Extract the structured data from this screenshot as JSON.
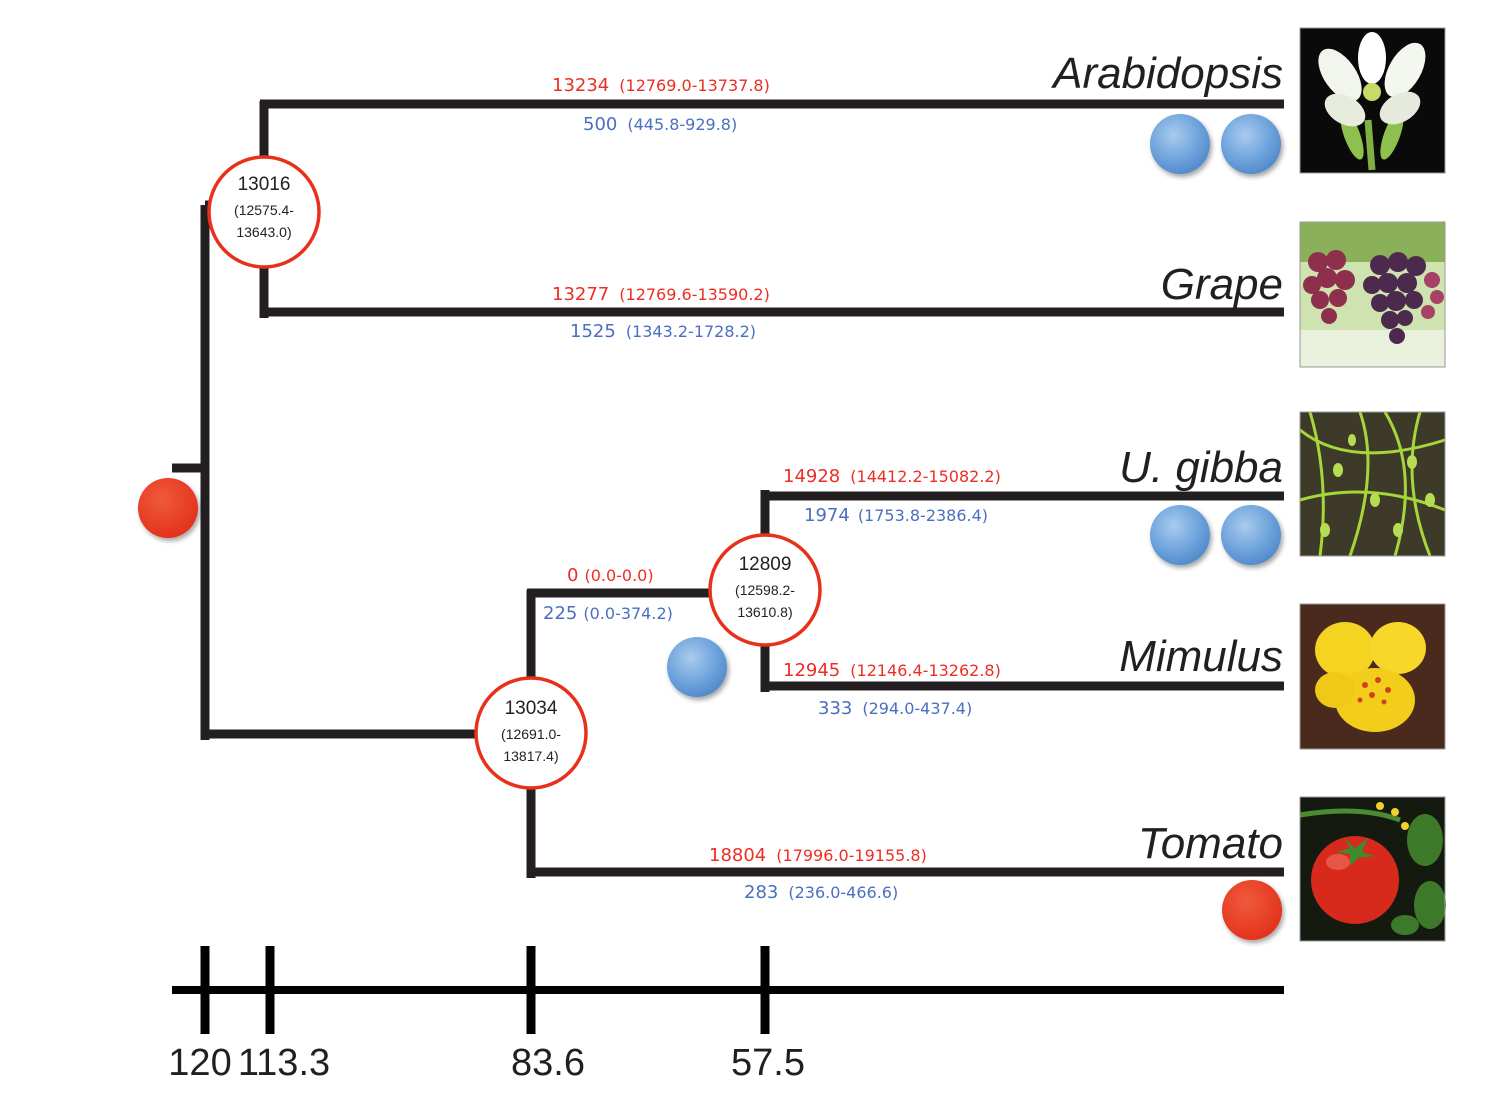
{
  "colors": {
    "gain": "#ee2d24",
    "loss": "#4a6fc0",
    "node_outline": "#e8311c",
    "branch": "#231f20",
    "wgd_event_blue": "#5d9ad6",
    "wgd_event_red": "#e93a22"
  },
  "root_node": {
    "event_marker": "red-circle"
  },
  "nodes": {
    "arabidopsis_grape": {
      "value": "13016",
      "range_line1": "(12575.4-",
      "range_line2": "13643.0)"
    },
    "lamiales_tomato": {
      "value": "13034",
      "range_line1": "(12691.0-",
      "range_line2": "13817.4)"
    },
    "ugibba_mimulus": {
      "value": "12809",
      "range_line1": "(12598.2-",
      "range_line2": "13610.8)"
    }
  },
  "branches": {
    "arabidopsis": {
      "gain": "13234",
      "gain_ci": "(12769.0-13737.8)",
      "loss": "500",
      "loss_ci": "(445.8-929.8)"
    },
    "grape": {
      "gain": "13277",
      "gain_ci": "(12769.6-13590.2)",
      "loss": "1525",
      "loss_ci": "(1343.2-1728.2)"
    },
    "ugibba": {
      "gain": "14928",
      "gain_ci": "(14412.2-15082.2)",
      "loss": "1974",
      "loss_ci": "(1753.8-2386.4)"
    },
    "mimulus": {
      "gain": "12945",
      "gain_ci": "(12146.4-13262.8)",
      "loss": "333",
      "loss_ci": "(294.0-437.4)"
    },
    "lamiales_stem": {
      "gain": "0",
      "gain_ci": "(0.0-0.0)",
      "loss": "225",
      "loss_ci": "(0.0-374.2)"
    },
    "tomato": {
      "gain": "18804",
      "gain_ci": "(17996.0-19155.8)",
      "loss": "283",
      "loss_ci": "(236.0-466.6)"
    }
  },
  "taxa": {
    "arabidopsis": {
      "label": "Arabidopsis",
      "photo_icon": "white-flower-icon"
    },
    "grape": {
      "label": "Grape",
      "photo_icon": "grape-cluster-icon"
    },
    "ugibba": {
      "label": "U. gibba",
      "photo_icon": "green-vines-icon"
    },
    "mimulus": {
      "label": "Mimulus",
      "photo_icon": "yellow-flower-icon"
    },
    "tomato": {
      "label": "Tomato",
      "photo_icon": "tomato-fruit-icon"
    }
  },
  "time_axis": {
    "ticks": [
      "120",
      "113.3",
      "83.6",
      "57.5"
    ]
  }
}
